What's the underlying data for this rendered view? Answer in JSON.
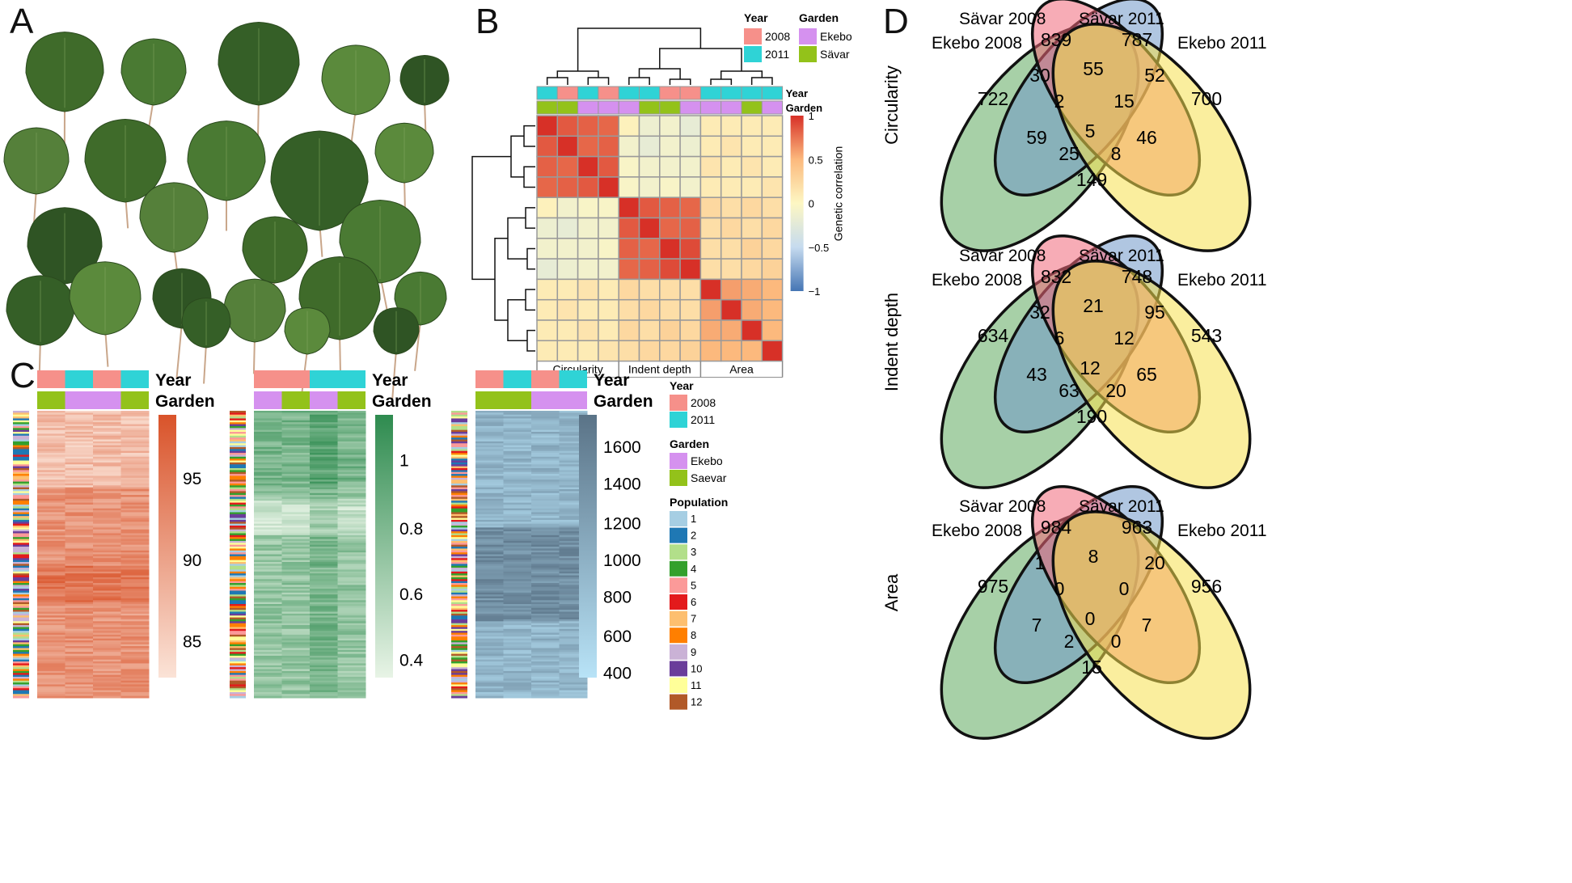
{
  "panels": {
    "a": "A",
    "b": "B",
    "c": "C",
    "d": "D"
  },
  "panel_b": {
    "legend_year_title": "Year",
    "legend_garden_title": "Garden",
    "year_items": [
      {
        "label": "2008",
        "color": "#f6908a"
      },
      {
        "label": "2011",
        "color": "#2fd3d6"
      }
    ],
    "garden_items": [
      {
        "label": "Ekebo",
        "color": "#d591ef"
      },
      {
        "label": "Sävar",
        "color": "#93c21a"
      }
    ],
    "track_year": "Year",
    "track_garden": "Garden",
    "colorbar_title": "Genetic correlation",
    "colorbar_ticks": [
      "1",
      "0.5",
      "0",
      "−0.5",
      "−1"
    ],
    "groups": [
      "Circularity",
      "Indent depth",
      "Area"
    ],
    "year_track": [
      1,
      0,
      1,
      0,
      1,
      1,
      0,
      0,
      1,
      1,
      1,
      1
    ],
    "garden_track": [
      1,
      1,
      0,
      0,
      0,
      1,
      1,
      0,
      0,
      0,
      1,
      0
    ],
    "matrix": [
      [
        1,
        0.85,
        0.82,
        0.8,
        0.05,
        -0.15,
        -0.1,
        -0.2,
        0.1,
        0.1,
        0.1,
        0.1
      ],
      [
        0.85,
        1,
        0.8,
        0.82,
        -0.1,
        -0.2,
        -0.1,
        -0.15,
        0.1,
        0.15,
        0.1,
        0.1
      ],
      [
        0.82,
        0.8,
        1,
        0.85,
        -0.05,
        -0.1,
        -0.1,
        -0.1,
        0.15,
        0.1,
        0.15,
        0.1
      ],
      [
        0.8,
        0.82,
        0.85,
        1,
        -0.05,
        -0.1,
        -0.05,
        -0.1,
        0.1,
        0.1,
        0.1,
        0.15
      ],
      [
        0.05,
        -0.1,
        -0.05,
        -0.05,
        1,
        0.85,
        0.82,
        0.8,
        0.25,
        0.2,
        0.25,
        0.2
      ],
      [
        -0.15,
        -0.2,
        -0.1,
        -0.1,
        0.85,
        1,
        0.8,
        0.82,
        0.2,
        0.25,
        0.2,
        0.25
      ],
      [
        -0.1,
        -0.1,
        -0.1,
        -0.05,
        0.82,
        0.8,
        1,
        0.9,
        0.2,
        0.2,
        0.3,
        0.25
      ],
      [
        -0.2,
        -0.15,
        -0.1,
        -0.1,
        0.8,
        0.82,
        0.9,
        1,
        0.2,
        0.2,
        0.25,
        0.3
      ],
      [
        0.1,
        0.1,
        0.15,
        0.1,
        0.25,
        0.2,
        0.2,
        0.2,
        1,
        0.6,
        0.55,
        0.5
      ],
      [
        0.1,
        0.15,
        0.1,
        0.1,
        0.2,
        0.25,
        0.2,
        0.2,
        0.6,
        1,
        0.55,
        0.5
      ],
      [
        0.1,
        0.1,
        0.15,
        0.1,
        0.25,
        0.2,
        0.3,
        0.25,
        0.55,
        0.55,
        1,
        0.5
      ],
      [
        0.1,
        0.1,
        0.1,
        0.15,
        0.2,
        0.25,
        0.25,
        0.3,
        0.5,
        0.5,
        0.5,
        1
      ]
    ]
  },
  "panel_c": {
    "heatmaps": [
      {
        "year_label": "Year",
        "garden_label": "Garden",
        "year_track": [
          "#f6908a",
          "#2fd3d6",
          "#f6908a",
          "#2fd3d6"
        ],
        "garden_track": [
          "#93c21a",
          "#d591ef",
          "#d591ef",
          "#93c21a"
        ],
        "ticks": [
          "95",
          "90",
          "85"
        ],
        "color_low": "#fbe3d7",
        "color_high": "#d9532a"
      },
      {
        "year_label": "Year",
        "garden_label": "Garden",
        "year_track": [
          "#f6908a",
          "#f6908a",
          "#2fd3d6",
          "#2fd3d6"
        ],
        "garden_track": [
          "#d591ef",
          "#93c21a",
          "#d591ef",
          "#93c21a"
        ],
        "ticks": [
          "1",
          "0.8",
          "0.6",
          "0.4"
        ],
        "color_low": "#e8f4e6",
        "color_high": "#2e8b4f"
      },
      {
        "year_label": "Year",
        "garden_label": "Garden",
        "year_track": [
          "#f6908a",
          "#2fd3d6",
          "#f6908a",
          "#2fd3d6"
        ],
        "garden_track": [
          "#93c21a",
          "#93c21a",
          "#d591ef",
          "#d591ef"
        ],
        "ticks": [
          "1600",
          "1400",
          "1200",
          "1000",
          "800",
          "600",
          "400"
        ],
        "color_low": "#b8e3f7",
        "color_high": "#5a7387"
      }
    ],
    "legend": {
      "year_title": "Year",
      "year_items": [
        {
          "label": "2008",
          "color": "#f6908a"
        },
        {
          "label": "2011",
          "color": "#2fd3d6"
        }
      ],
      "garden_title": "Garden",
      "garden_items": [
        {
          "label": "Ekebo",
          "color": "#d591ef"
        },
        {
          "label": "Saevar",
          "color": "#93c21a"
        }
      ],
      "population_title": "Population",
      "population_items": [
        {
          "label": "1",
          "color": "#a6cee3"
        },
        {
          "label": "2",
          "color": "#1f78b4"
        },
        {
          "label": "3",
          "color": "#b2df8a"
        },
        {
          "label": "4",
          "color": "#33a02c"
        },
        {
          "label": "5",
          "color": "#fb9a99"
        },
        {
          "label": "6",
          "color": "#e31a1c"
        },
        {
          "label": "7",
          "color": "#fdbf6f"
        },
        {
          "label": "8",
          "color": "#ff7f00"
        },
        {
          "label": "9",
          "color": "#cab2d6"
        },
        {
          "label": "10",
          "color": "#6a3d9a"
        },
        {
          "label": "11",
          "color": "#ffff99"
        },
        {
          "label": "12",
          "color": "#b15928"
        }
      ]
    }
  },
  "panel_d": {
    "set_labels": [
      "Ekebo 2008",
      "Sävar 2008",
      "Sävar 2011",
      "Ekebo 2011"
    ],
    "set_colors": [
      "#5fa95f",
      "#6f97c9",
      "#f0677a",
      "#f6e04f"
    ],
    "venns": [
      {
        "title": "Circularity",
        "counts": {
          "only1": "722",
          "only2": "839",
          "only3": "787",
          "only4": "700",
          "12": "30",
          "23": "55",
          "34": "52",
          "13": "59",
          "24": "46",
          "14": "149",
          "123": "2",
          "234": "15",
          "134": "25",
          "124": "8",
          "1234": "5"
        }
      },
      {
        "title": "Indent depth",
        "counts": {
          "only1": "634",
          "only2": "832",
          "only3": "748",
          "only4": "543",
          "12": "32",
          "23": "21",
          "34": "95",
          "13": "43",
          "24": "65",
          "14": "190",
          "123": "6",
          "234": "12",
          "134": "63",
          "124": "20",
          "1234": "12"
        }
      },
      {
        "title": "Area",
        "counts": {
          "only1": "975",
          "only2": "984",
          "only3": "963",
          "only4": "956",
          "12": "1",
          "23": "8",
          "34": "20",
          "13": "7",
          "24": "7",
          "14": "15",
          "123": "0",
          "234": "0",
          "134": "2",
          "124": "0",
          "1234": "0"
        }
      }
    ]
  }
}
